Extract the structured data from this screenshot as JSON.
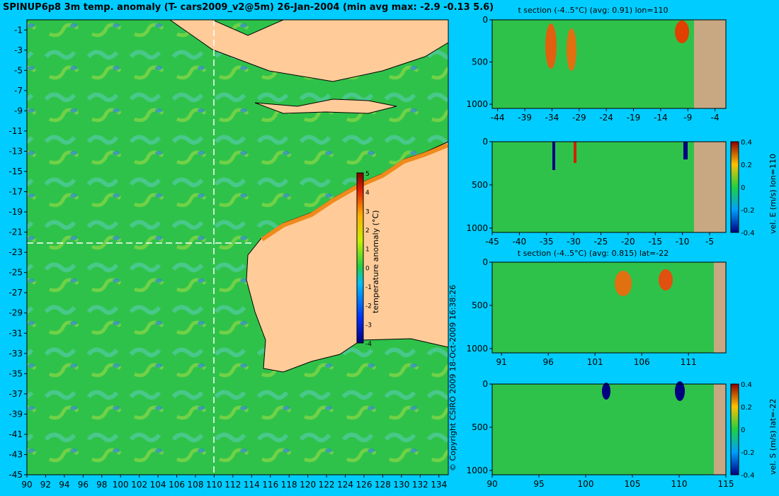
{
  "header": {
    "title": "SPINUP6p8 3m temp. anomaly (T- cars2009_v2@5m) 26-Jan-2004 (min avg max: -2.9 -0.13 5.6)"
  },
  "copyright": "© Copyright CSIRO 2009  18-Oct-2009 16:38:26",
  "colors": {
    "background": "#00ccff",
    "ocean": "#2fc24a",
    "land": "#ffcc99",
    "section_land": "#c8a882",
    "crosshair": "#ffffff"
  },
  "chart_data": [
    {
      "type": "heatmap",
      "name": "map",
      "title": "SPINUP6p8 3m temp. anomaly (T- cars2009_v2@5m) 26-Jan-2004 (min avg max: -2.9 -0.13 5.6)",
      "xlabel": "",
      "ylabel": "",
      "xlim": [
        90,
        135
      ],
      "ylim": [
        -45,
        0
      ],
      "x_ticks": [
        90,
        92,
        94,
        96,
        98,
        100,
        102,
        104,
        106,
        108,
        110,
        112,
        114,
        116,
        118,
        120,
        122,
        124,
        126,
        128,
        130,
        132,
        134
      ],
      "y_ticks": [
        -1,
        -3,
        -5,
        -7,
        -9,
        -11,
        -13,
        -15,
        -17,
        -19,
        -21,
        -23,
        -25,
        -27,
        -29,
        -31,
        -33,
        -35,
        -37,
        -39,
        -41,
        -43,
        -45
      ],
      "crosshair": {
        "lon": 110,
        "lat": -22
      },
      "colorbar": {
        "label": "temperature anomaly (°C)",
        "ticks": [
          5,
          4,
          3,
          2,
          1,
          0,
          -1,
          -2,
          -3,
          -4
        ],
        "range": [
          -4,
          5
        ]
      }
    },
    {
      "type": "heatmap",
      "name": "t-section-lon",
      "title": "t section (-4..5°C) (avg: 0.91) lon=110",
      "xlim": [
        -45,
        -2
      ],
      "ylim": [
        1050,
        0
      ],
      "x_ticks": [
        -44,
        -39,
        -34,
        -29,
        -24,
        -19,
        -14,
        -9,
        -4
      ],
      "y_ticks": [
        0,
        500,
        1000
      ],
      "land_from_x": -8
    },
    {
      "type": "heatmap",
      "name": "vel-e-section",
      "title": "",
      "xlim": [
        -45,
        -2
      ],
      "ylim": [
        1050,
        0
      ],
      "x_ticks": [
        -45,
        -40,
        -35,
        -30,
        -25,
        -20,
        -15,
        -10,
        -5
      ],
      "y_ticks": [
        0,
        500,
        1000
      ],
      "land_from_x": -8,
      "colorbar": {
        "label": "vel. E (m/s) lon=110",
        "ticks": [
          "0.4",
          "0.2",
          "0",
          "-0.2",
          "-0.4"
        ],
        "range": [
          -0.4,
          0.4
        ]
      }
    },
    {
      "type": "heatmap",
      "name": "t-section-lat",
      "title": "t section (-4..5°C) (avg: 0.815) lat=-22",
      "xlim": [
        90,
        115
      ],
      "ylim": [
        1050,
        0
      ],
      "x_ticks": [
        91,
        96,
        101,
        106,
        111
      ],
      "y_ticks": [
        0,
        500,
        1000
      ],
      "land_from_x": 113.5
    },
    {
      "type": "heatmap",
      "name": "vel-s-section",
      "title": "",
      "xlim": [
        90,
        115
      ],
      "ylim": [
        1050,
        0
      ],
      "x_ticks": [
        90,
        95,
        100,
        105,
        110,
        115
      ],
      "y_ticks": [
        0,
        500,
        1000
      ],
      "land_from_x": 113.8,
      "colorbar": {
        "label": "vel. S (m/s) lat=-22",
        "ticks": [
          "0.4",
          "0.2",
          "0",
          "-0.2",
          "-0.4"
        ],
        "range": [
          -0.4,
          0.4
        ]
      }
    }
  ]
}
